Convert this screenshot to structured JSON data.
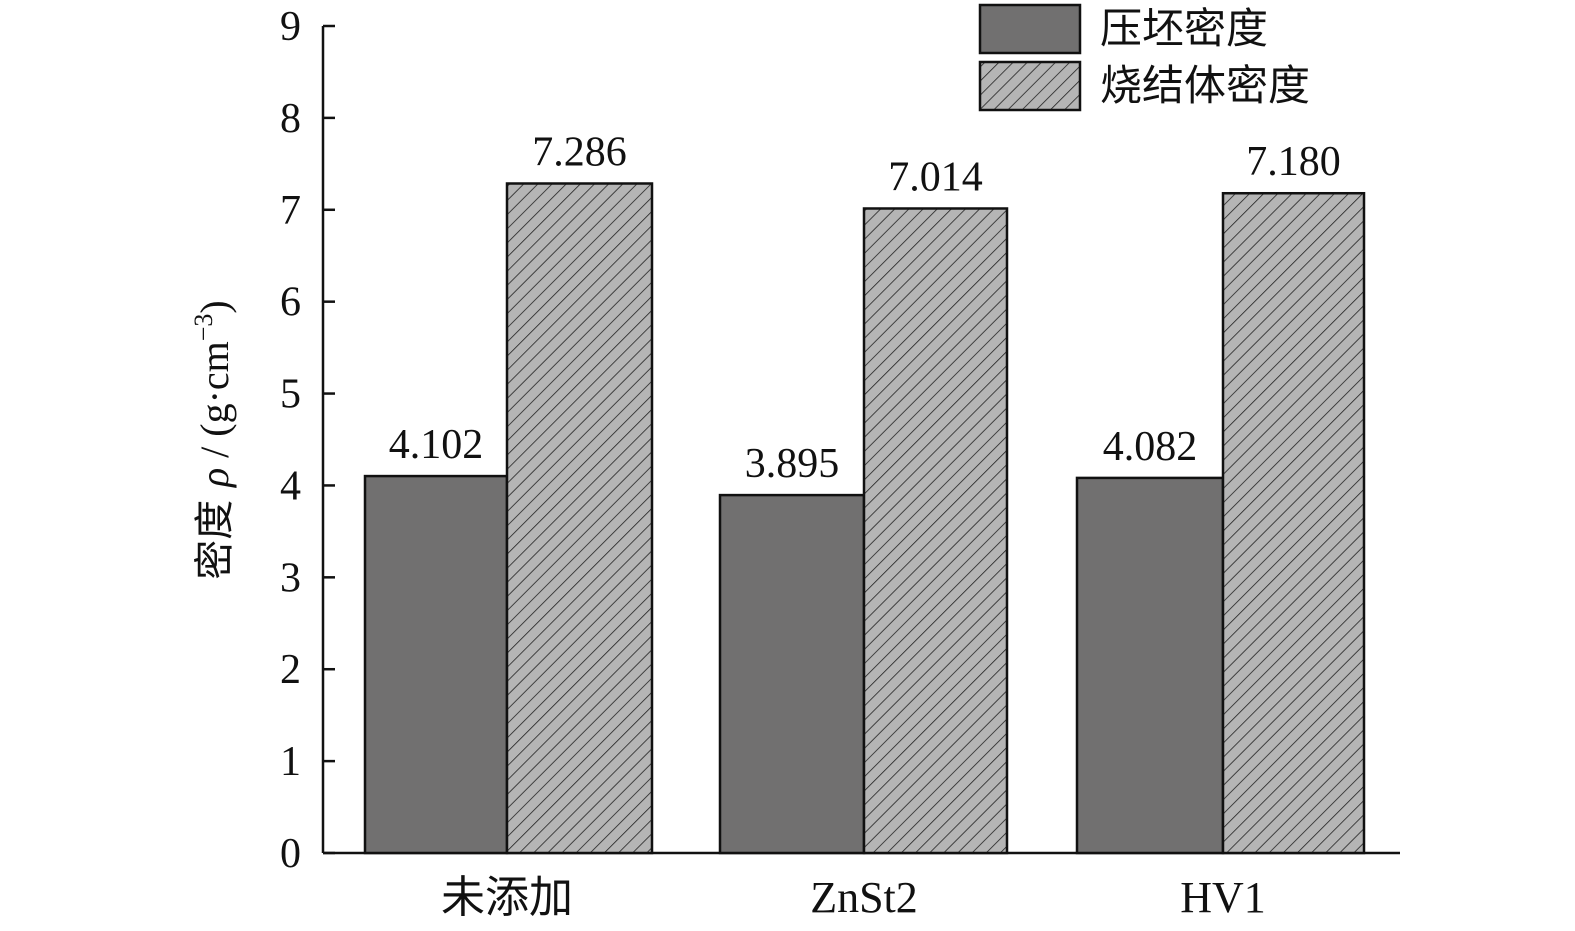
{
  "chart_data": {
    "type": "bar",
    "categories": [
      "未添加",
      "ZnSt2",
      "HV1"
    ],
    "series": [
      {
        "name": "压坯密度",
        "values": [
          4.102,
          3.895,
          4.082
        ],
        "value_labels": [
          "4.102",
          "3.895",
          "4.082"
        ],
        "color": "#717070",
        "pattern": "solid"
      },
      {
        "name": "烧结体密度",
        "values": [
          7.286,
          7.014,
          7.18
        ],
        "value_labels": [
          "7.286",
          "7.014",
          "7.180"
        ],
        "color": "#b5b5b5",
        "pattern": "diagonal-hatch"
      }
    ],
    "ylabel": "密度 ρ / (g·cm⁻³)",
    "ylabel_parts": {
      "prefix": "密度 ",
      "symbol": "ρ",
      "unit": " / (g·cm",
      "exponent": "−3",
      "suffix": ")"
    },
    "ylim": [
      0,
      9
    ],
    "yticks": [
      "0",
      "1",
      "2",
      "3",
      "4",
      "5",
      "6",
      "7",
      "8",
      "9"
    ],
    "grid": false,
    "legend_position": "top-right"
  }
}
